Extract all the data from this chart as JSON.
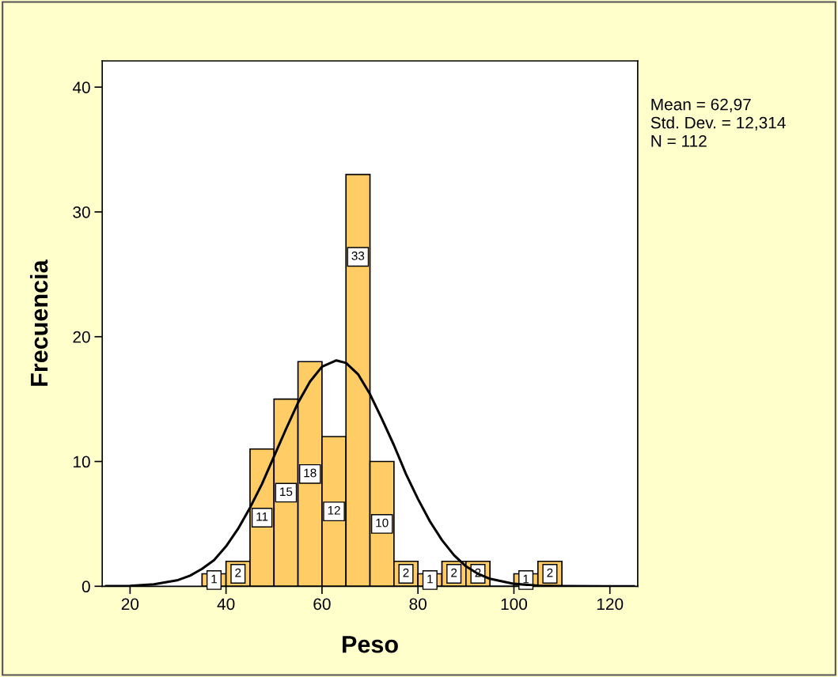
{
  "chart_data": {
    "type": "histogram",
    "xlabel": "Peso",
    "ylabel": "Frecuencia",
    "bins": [
      35,
      40,
      45,
      50,
      55,
      60,
      65,
      70,
      75,
      80,
      85,
      90,
      95,
      100,
      105,
      110
    ],
    "values": [
      1,
      2,
      11,
      15,
      18,
      12,
      33,
      10,
      2,
      1,
      2,
      2,
      0,
      1,
      2
    ],
    "value_labels": [
      "1",
      "2",
      "11",
      "15",
      "18",
      "12",
      "33",
      "10",
      "2",
      "1",
      "2",
      "2",
      null,
      "1",
      "2"
    ],
    "color": "#ffcc66",
    "series": [
      {
        "type": "line",
        "color": "#000000",
        "x": [
          15,
          20,
          25,
          30,
          32.5,
          35,
          37.5,
          40,
          42.5,
          45,
          47.5,
          50,
          52.5,
          55,
          57.5,
          60,
          63,
          65,
          67.5,
          70,
          72.5,
          75,
          77.5,
          80,
          82.5,
          85,
          87.5,
          90,
          92.5,
          95,
          100,
          105,
          110,
          125
        ],
        "values": [
          0.01,
          0.04,
          0.16,
          0.5,
          0.85,
          1.4,
          2.1,
          3.2,
          4.6,
          6.3,
          8.2,
          10.4,
          12.6,
          14.7,
          16.4,
          17.6,
          18.1,
          17.9,
          17.0,
          15.4,
          13.4,
          11.3,
          9.0,
          7.0,
          5.2,
          3.7,
          2.5,
          1.6,
          1.0,
          0.6,
          0.2,
          0.05,
          0.01,
          0.0
        ]
      }
    ],
    "xlim": [
      14.2,
      125.8
    ],
    "ylim": [
      0,
      42.1
    ],
    "xticks": [
      20,
      40,
      60,
      80,
      100,
      120
    ],
    "yticks": [
      0,
      10,
      20,
      30,
      40
    ],
    "grid": false,
    "annotations": [
      "Mean = 62,97",
      "Std. Dev. = 12,314",
      "N = 112"
    ]
  }
}
